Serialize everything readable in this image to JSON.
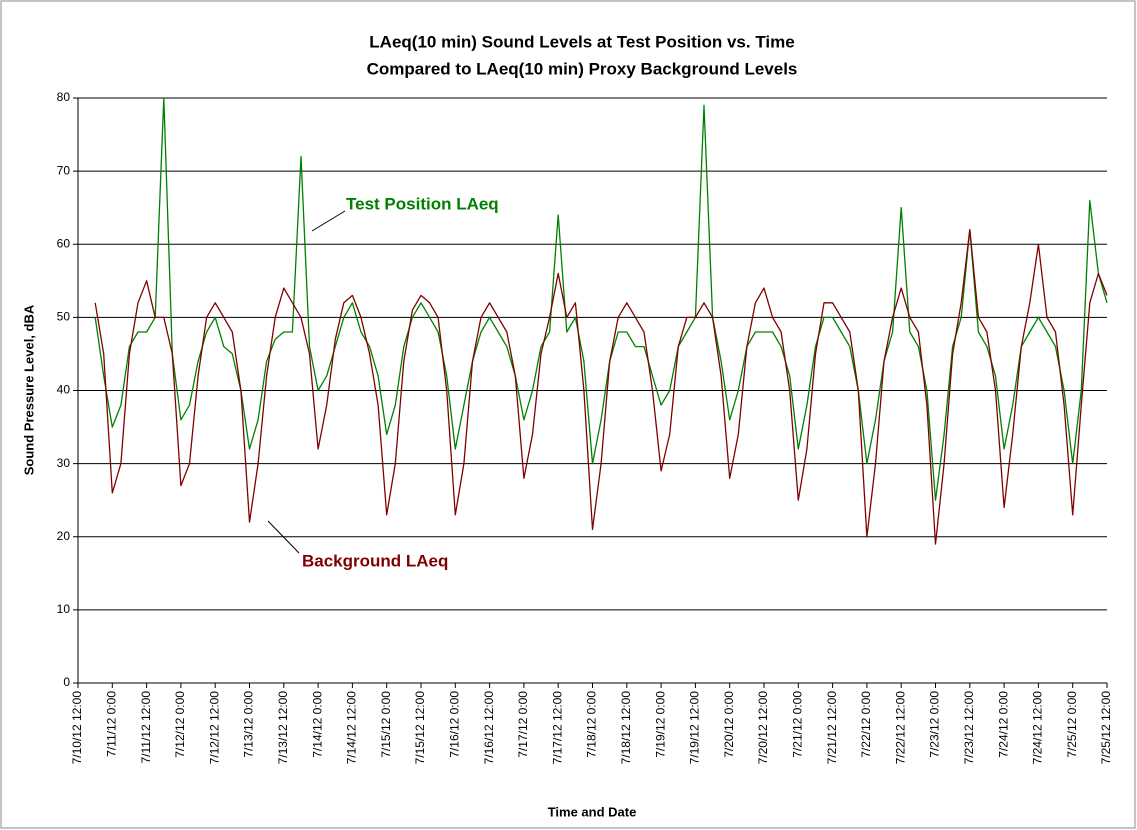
{
  "chart_data": {
    "type": "line",
    "title": "LAeq(10 min) Sound Levels at Test Position vs. Time",
    "subtitle": "Compared to LAeq(10 min) Proxy Background Levels",
    "x_label": "Time and Date",
    "y_label": "Sound Pressure Level, dBA",
    "x": [
      "7/10/12 18:00",
      "7/10/12 21:00",
      "7/11/12 0:00",
      "7/11/12 3:00",
      "7/11/12 6:00",
      "7/11/12 9:00",
      "7/11/12 12:00",
      "7/11/12 15:00",
      "7/11/12 18:00",
      "7/11/12 21:00",
      "7/12/12 0:00",
      "7/12/12 3:00",
      "7/12/12 6:00",
      "7/12/12 9:00",
      "7/12/12 12:00",
      "7/12/12 15:00",
      "7/12/12 18:00",
      "7/12/12 21:00",
      "7/13/12 0:00",
      "7/13/12 3:00",
      "7/13/12 6:00",
      "7/13/12 9:00",
      "7/13/12 12:00",
      "7/13/12 15:00",
      "7/13/12 18:00",
      "7/13/12 21:00",
      "7/14/12 0:00",
      "7/14/12 3:00",
      "7/14/12 6:00",
      "7/14/12 9:00",
      "7/14/12 12:00",
      "7/14/12 15:00",
      "7/14/12 18:00",
      "7/14/12 21:00",
      "7/15/12 0:00",
      "7/15/12 3:00",
      "7/15/12 6:00",
      "7/15/12 9:00",
      "7/15/12 12:00",
      "7/15/12 15:00",
      "7/15/12 18:00",
      "7/15/12 21:00",
      "7/16/12 0:00",
      "7/16/12 3:00",
      "7/16/12 6:00",
      "7/16/12 9:00",
      "7/16/12 12:00",
      "7/16/12 15:00",
      "7/16/12 18:00",
      "7/16/12 21:00",
      "7/17/12 0:00",
      "7/17/12 3:00",
      "7/17/12 6:00",
      "7/17/12 9:00",
      "7/17/12 12:00",
      "7/17/12 15:00",
      "7/17/12 18:00",
      "7/17/12 21:00",
      "7/18/12 0:00",
      "7/18/12 3:00",
      "7/18/12 6:00",
      "7/18/12 9:00",
      "7/18/12 12:00",
      "7/18/12 15:00",
      "7/18/12 18:00",
      "7/18/12 21:00",
      "7/19/12 0:00",
      "7/19/12 3:00",
      "7/19/12 6:00",
      "7/19/12 9:00",
      "7/19/12 12:00",
      "7/19/12 15:00",
      "7/19/12 18:00",
      "7/19/12 21:00",
      "7/20/12 0:00",
      "7/20/12 3:00",
      "7/20/12 6:00",
      "7/20/12 9:00",
      "7/20/12 12:00",
      "7/20/12 15:00",
      "7/20/12 18:00",
      "7/20/12 21:00",
      "7/21/12 0:00",
      "7/21/12 3:00",
      "7/21/12 6:00",
      "7/21/12 9:00",
      "7/21/12 12:00",
      "7/21/12 15:00",
      "7/21/12 18:00",
      "7/21/12 21:00",
      "7/22/12 0:00",
      "7/22/12 3:00",
      "7/22/12 6:00",
      "7/22/12 9:00",
      "7/22/12 12:00",
      "7/22/12 15:00",
      "7/22/12 18:00",
      "7/22/12 21:00",
      "7/23/12 0:00",
      "7/23/12 3:00",
      "7/23/12 6:00",
      "7/23/12 9:00",
      "7/23/12 12:00",
      "7/23/12 15:00",
      "7/23/12 18:00",
      "7/23/12 21:00",
      "7/24/12 0:00",
      "7/24/12 3:00",
      "7/24/12 6:00",
      "7/24/12 9:00",
      "7/24/12 12:00",
      "7/24/12 15:00",
      "7/24/12 18:00",
      "7/24/12 21:00",
      "7/25/12 0:00",
      "7/25/12 3:00",
      "7/25/12 6:00",
      "7/25/12 9:00",
      "7/25/12 12:00"
    ],
    "series": [
      {
        "name": "Test Position LAeq",
        "color": "#008000",
        "values": [
          50,
          42,
          35,
          38,
          46,
          48,
          48,
          50,
          80,
          45,
          36,
          38,
          44,
          48,
          50,
          46,
          45,
          40,
          32,
          36,
          44,
          47,
          48,
          48,
          72,
          46,
          40,
          42,
          46,
          50,
          52,
          48,
          46,
          42,
          34,
          38,
          46,
          50,
          52,
          50,
          48,
          42,
          32,
          38,
          44,
          48,
          50,
          48,
          46,
          42,
          36,
          40,
          46,
          48,
          64,
          48,
          50,
          44,
          30,
          36,
          44,
          48,
          48,
          46,
          46,
          42,
          38,
          40,
          46,
          48,
          50,
          79,
          50,
          44,
          36,
          40,
          46,
          48,
          48,
          48,
          46,
          42,
          32,
          38,
          46,
          50,
          50,
          48,
          46,
          40,
          30,
          36,
          44,
          48,
          65,
          48,
          46,
          40,
          25,
          34,
          46,
          50,
          62,
          48,
          46,
          42,
          32,
          38,
          46,
          48,
          50,
          48,
          46,
          40,
          30,
          40,
          66,
          56,
          52
        ]
      },
      {
        "name": "Background LAeq",
        "color": "#800000",
        "values": [
          52,
          45,
          26,
          30,
          45,
          52,
          55,
          50,
          50,
          45,
          27,
          30,
          42,
          50,
          52,
          50,
          48,
          40,
          22,
          30,
          42,
          50,
          54,
          52,
          50,
          45,
          32,
          38,
          47,
          52,
          53,
          50,
          45,
          38,
          23,
          30,
          44,
          51,
          53,
          52,
          50,
          40,
          23,
          30,
          44,
          50,
          52,
          50,
          48,
          42,
          28,
          34,
          45,
          50,
          56,
          50,
          52,
          40,
          21,
          30,
          44,
          50,
          52,
          50,
          48,
          40,
          29,
          34,
          46,
          50,
          50,
          52,
          50,
          42,
          28,
          34,
          46,
          52,
          54,
          50,
          48,
          40,
          25,
          32,
          45,
          52,
          52,
          50,
          48,
          40,
          20,
          30,
          44,
          50,
          54,
          50,
          48,
          38,
          19,
          30,
          45,
          52,
          62,
          50,
          48,
          40,
          24,
          34,
          46,
          52,
          60,
          50,
          48,
          38,
          23,
          38,
          52,
          56,
          53
        ]
      }
    ],
    "xlim": [
      "7/10/12 12:00",
      "7/25/12 12:00"
    ],
    "xticks": [
      "7/10/12 12:00",
      "7/11/12 0:00",
      "7/11/12 12:00",
      "7/12/12 0:00",
      "7/12/12 12:00",
      "7/13/12 0:00",
      "7/13/12 12:00",
      "7/14/12 0:00",
      "7/14/12 12:00",
      "7/15/12 0:00",
      "7/15/12 12:00",
      "7/16/12 0:00",
      "7/16/12 12:00",
      "7/17/12 0:00",
      "7/17/12 12:00",
      "7/18/12 0:00",
      "7/18/12 12:00",
      "7/19/12 0:00",
      "7/19/12 12:00",
      "7/20/12 0:00",
      "7/20/12 12:00",
      "7/21/12 0:00",
      "7/21/12 12:00",
      "7/22/12 0:00",
      "7/22/12 12:00",
      "7/23/12 0:00",
      "7/23/12 12:00",
      "7/24/12 0:00",
      "7/24/12 12:00",
      "7/25/12 0:00",
      "7/25/12 12:00"
    ],
    "ylim": [
      0,
      80
    ],
    "yticks": [
      0,
      10,
      20,
      30,
      40,
      50,
      60,
      70,
      80
    ],
    "grid": true
  }
}
